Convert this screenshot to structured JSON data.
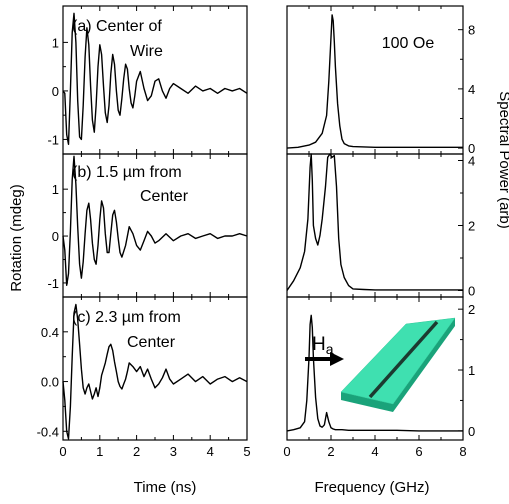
{
  "chart_data": [
    {
      "type": "line",
      "panel": "a",
      "annotation_line1": "(a) Center of",
      "annotation_line2": "Wire",
      "xlabel": "Time (ns)",
      "ylabel": "Rotation (mdeg)",
      "xlim": [
        0,
        5
      ],
      "ylim": [
        -1.3,
        1.75
      ],
      "yticks": [
        -1,
        0,
        1
      ],
      "x": [
        0.0,
        0.05,
        0.1,
        0.15,
        0.2,
        0.25,
        0.3,
        0.35,
        0.4,
        0.45,
        0.5,
        0.55,
        0.6,
        0.65,
        0.7,
        0.75,
        0.8,
        0.85,
        0.9,
        0.95,
        1.0,
        1.05,
        1.1,
        1.15,
        1.2,
        1.25,
        1.3,
        1.35,
        1.4,
        1.45,
        1.5,
        1.55,
        1.6,
        1.65,
        1.7,
        1.75,
        1.8,
        1.85,
        1.9,
        1.95,
        2.0,
        2.1,
        2.2,
        2.3,
        2.4,
        2.5,
        2.6,
        2.7,
        2.8,
        2.9,
        3.0,
        3.2,
        3.4,
        3.6,
        3.8,
        4.0,
        4.2,
        4.4,
        4.6,
        4.8,
        5.0
      ],
      "y": [
        0.0,
        -0.05,
        -0.9,
        -1.1,
        0.0,
        1.2,
        1.6,
        1.0,
        -0.2,
        -0.95,
        -1.0,
        -0.3,
        0.7,
        1.3,
        0.95,
        0.1,
        -0.6,
        -0.85,
        -0.3,
        0.5,
        0.95,
        0.75,
        0.1,
        -0.45,
        -0.65,
        -0.3,
        0.35,
        0.75,
        0.55,
        0.0,
        -0.4,
        -0.5,
        -0.15,
        0.25,
        0.55,
        0.45,
        0.05,
        -0.25,
        -0.35,
        -0.1,
        0.2,
        0.4,
        0.05,
        -0.2,
        -0.1,
        0.2,
        0.25,
        0.0,
        -0.15,
        0.05,
        0.15,
        0.05,
        -0.05,
        0.1,
        0.0,
        0.05,
        -0.05,
        0.05,
        0.0,
        0.05,
        -0.05
      ]
    },
    {
      "type": "line",
      "panel": "b",
      "annotation_line1": "(b) 1.5 µm from",
      "annotation_line2": "Center",
      "xlim": [
        0,
        5
      ],
      "ylim": [
        -1.3,
        1.75
      ],
      "yticks": [
        -1,
        0,
        1
      ],
      "x": [
        0.0,
        0.05,
        0.1,
        0.15,
        0.2,
        0.25,
        0.3,
        0.35,
        0.4,
        0.45,
        0.5,
        0.55,
        0.6,
        0.65,
        0.7,
        0.75,
        0.8,
        0.85,
        0.9,
        0.95,
        1.0,
        1.05,
        1.1,
        1.15,
        1.2,
        1.25,
        1.3,
        1.35,
        1.4,
        1.45,
        1.5,
        1.55,
        1.6,
        1.7,
        1.8,
        1.9,
        2.0,
        2.1,
        2.2,
        2.3,
        2.4,
        2.5,
        2.6,
        2.8,
        3.0,
        3.2,
        3.4,
        3.6,
        3.8,
        4.0,
        4.2,
        4.4,
        4.6,
        4.8,
        5.0
      ],
      "y": [
        0.0,
        -0.3,
        -1.05,
        -0.8,
        0.1,
        1.2,
        1.7,
        1.1,
        0.2,
        -0.6,
        -0.9,
        -0.55,
        0.05,
        0.55,
        0.7,
        0.35,
        -0.15,
        -0.5,
        -0.6,
        -0.2,
        0.35,
        0.75,
        0.6,
        0.05,
        -0.35,
        -0.35,
        0.05,
        0.45,
        0.55,
        0.3,
        -0.05,
        -0.35,
        -0.45,
        -0.2,
        0.2,
        0.05,
        -0.2,
        -0.3,
        -0.1,
        0.1,
        0.0,
        -0.15,
        -0.1,
        0.05,
        -0.1,
        0.0,
        0.05,
        -0.05,
        0.0,
        0.05,
        -0.05,
        0.0,
        0.0,
        0.05,
        0.0
      ]
    },
    {
      "type": "line",
      "panel": "c",
      "annotation_line1": "(c) 2.3 µm from",
      "annotation_line2": "Center",
      "xlim": [
        0,
        5
      ],
      "ylim": [
        -0.47,
        0.68
      ],
      "yticks": [
        -0.4,
        0.0,
        0.4
      ],
      "x": [
        0.0,
        0.05,
        0.1,
        0.15,
        0.2,
        0.25,
        0.3,
        0.35,
        0.4,
        0.45,
        0.5,
        0.55,
        0.6,
        0.65,
        0.7,
        0.75,
        0.8,
        0.85,
        0.9,
        0.95,
        1.0,
        1.05,
        1.1,
        1.15,
        1.2,
        1.25,
        1.3,
        1.35,
        1.4,
        1.45,
        1.5,
        1.55,
        1.6,
        1.65,
        1.7,
        1.75,
        1.8,
        1.9,
        2.0,
        2.1,
        2.2,
        2.3,
        2.4,
        2.5,
        2.6,
        2.7,
        2.8,
        2.9,
        3.0,
        3.2,
        3.4,
        3.6,
        3.8,
        4.0,
        4.2,
        4.4,
        4.6,
        4.8,
        5.0
      ],
      "y": [
        0.0,
        -0.15,
        -0.4,
        -0.46,
        -0.2,
        0.2,
        0.55,
        0.62,
        0.5,
        0.3,
        0.1,
        -0.05,
        -0.1,
        -0.05,
        -0.02,
        -0.08,
        -0.14,
        -0.1,
        -0.05,
        -0.12,
        -0.05,
        0.05,
        0.1,
        0.15,
        0.22,
        0.28,
        0.3,
        0.25,
        0.16,
        0.08,
        0.0,
        -0.04,
        -0.06,
        -0.02,
        0.02,
        0.08,
        0.15,
        0.12,
        0.08,
        0.12,
        0.04,
        0.1,
        0.02,
        -0.05,
        -0.02,
        0.03,
        0.1,
        0.02,
        -0.02,
        0.02,
        0.06,
        0.0,
        0.04,
        -0.02,
        0.02,
        0.04,
        0.0,
        0.03,
        0.0
      ]
    },
    {
      "type": "line",
      "panel": "d",
      "annotation_line1": "100 Oe",
      "xlabel": "Frequency (GHz)",
      "ylabel": "Spectral Power (arb)",
      "xlim": [
        0,
        8
      ],
      "ylim": [
        -0.4,
        9.6
      ],
      "yticks": [
        0,
        4,
        8
      ],
      "x": [
        0.0,
        0.5,
        1.0,
        1.3,
        1.6,
        1.8,
        1.9,
        2.0,
        2.05,
        2.1,
        2.15,
        2.2,
        2.3,
        2.4,
        2.5,
        2.6,
        2.8,
        3.0,
        4.0,
        5.0,
        6.0,
        7.0,
        8.0
      ],
      "y": [
        0.0,
        0.05,
        0.2,
        0.4,
        1.0,
        2.2,
        4.5,
        7.5,
        9.0,
        8.6,
        7.2,
        5.5,
        3.0,
        1.5,
        0.6,
        0.3,
        0.15,
        0.1,
        0.05,
        0.05,
        0.05,
        0.05,
        0.05
      ]
    },
    {
      "type": "line",
      "panel": "e",
      "xlim": [
        0,
        8
      ],
      "ylim": [
        -0.2,
        4.2
      ],
      "yticks": [
        0,
        2,
        4
      ],
      "x": [
        0.0,
        0.3,
        0.6,
        0.8,
        0.95,
        1.05,
        1.1,
        1.15,
        1.2,
        1.3,
        1.4,
        1.5,
        1.6,
        1.75,
        1.85,
        1.95,
        2.05,
        2.15,
        2.25,
        2.35,
        2.45,
        2.6,
        2.8,
        3.0,
        3.5,
        4.0,
        5.0,
        6.0,
        7.0,
        8.0
      ],
      "y": [
        0.0,
        0.3,
        0.7,
        1.2,
        2.2,
        3.8,
        4.2,
        3.4,
        2.0,
        1.6,
        1.4,
        1.7,
        2.2,
        3.2,
        4.1,
        4.2,
        4.1,
        4.15,
        3.2,
        1.6,
        0.8,
        0.4,
        0.15,
        0.05,
        0.03,
        0.02,
        0.02,
        0.02,
        0.02,
        0.02
      ]
    },
    {
      "type": "line",
      "panel": "f",
      "inset_label": "H",
      "inset_label_sub": "a",
      "xlim": [
        0,
        8
      ],
      "ylim": [
        -0.15,
        2.2
      ],
      "yticks": [
        0,
        1,
        2
      ],
      "x": [
        0.0,
        0.3,
        0.6,
        0.8,
        0.9,
        1.0,
        1.05,
        1.1,
        1.15,
        1.2,
        1.3,
        1.4,
        1.5,
        1.6,
        1.7,
        1.8,
        1.9,
        2.0,
        2.1,
        2.2,
        2.3,
        2.5,
        2.8,
        3.2,
        4.0,
        5.0,
        6.0,
        7.0,
        8.0
      ],
      "y": [
        0.0,
        0.02,
        0.05,
        0.15,
        0.5,
        1.2,
        1.75,
        1.9,
        1.7,
        1.2,
        0.55,
        0.2,
        0.08,
        0.06,
        0.1,
        0.3,
        0.15,
        0.05,
        0.03,
        0.02,
        0.02,
        0.02,
        0.01,
        0.01,
        0.01,
        0.01,
        0.0,
        0.0,
        0.0
      ]
    }
  ]
}
